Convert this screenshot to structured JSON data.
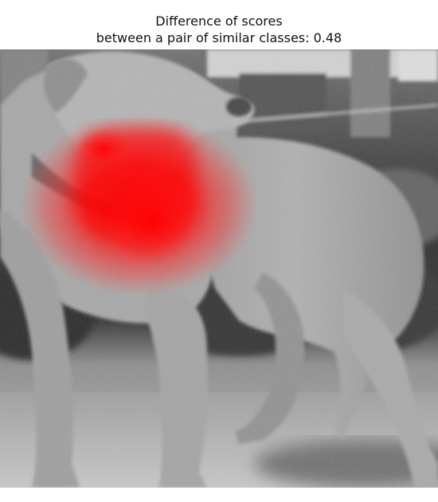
{
  "figure": {
    "title_line1": "Difference of scores",
    "title_line2": "between a pair of similar classes: 0.48",
    "photo_subject": "dog-photo",
    "heatmap_color": "#ff0000",
    "tone": "grayscale"
  }
}
